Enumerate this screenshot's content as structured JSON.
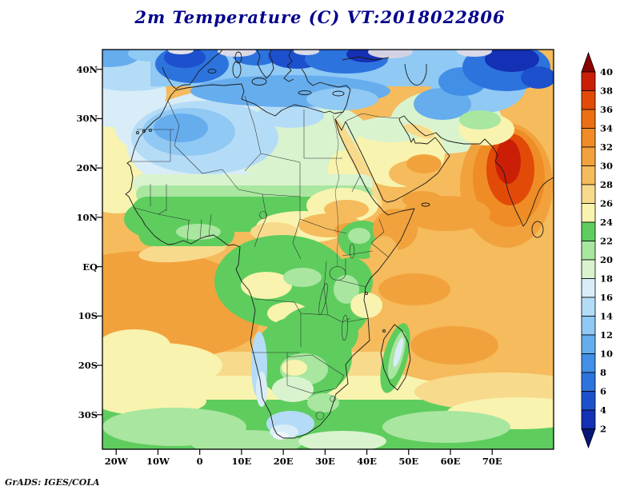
{
  "title": "2m Temperature (C) VT:2018022806",
  "footer": "GrADS: IGES/COLA",
  "colors": {
    "title_text": "#00008b",
    "frame": "#000000",
    "coastline": "#1b1b1b",
    "borders": "#2b2b2b"
  },
  "axes": {
    "lat": {
      "ticks": [
        {
          "label": "40N",
          "deg": 40
        },
        {
          "label": "30N",
          "deg": 30
        },
        {
          "label": "20N",
          "deg": 20
        },
        {
          "label": "10N",
          "deg": 10
        },
        {
          "label": "EQ",
          "deg": 0
        },
        {
          "label": "10S",
          "deg": -10
        },
        {
          "label": "20S",
          "deg": -20
        },
        {
          "label": "30S",
          "deg": -30
        }
      ]
    },
    "lon": {
      "ticks": [
        {
          "label": "20W",
          "deg": -20
        },
        {
          "label": "10W",
          "deg": -10
        },
        {
          "label": "0",
          "deg": 0
        },
        {
          "label": "10E",
          "deg": 10
        },
        {
          "label": "20E",
          "deg": 20
        },
        {
          "label": "30E",
          "deg": 30
        },
        {
          "label": "40E",
          "deg": 40
        },
        {
          "label": "50E",
          "deg": 50
        },
        {
          "label": "60E",
          "deg": 60
        },
        {
          "label": "70E",
          "deg": 70
        }
      ]
    }
  },
  "colorbar": {
    "tick_labels": [
      "40",
      "38",
      "36",
      "34",
      "32",
      "30",
      "28",
      "26",
      "24",
      "22",
      "20",
      "18",
      "16",
      "14",
      "12",
      "10",
      "8",
      "6",
      "4",
      "2"
    ],
    "segment_colors_top_to_bottom": [
      "#cb1e06",
      "#e24a08",
      "#ec6f14",
      "#ef8c26",
      "#f2a23c",
      "#f5bb5c",
      "#f8da8c",
      "#f8f3ae",
      "#5ecd5e",
      "#a9e6a0",
      "#d9f3cf",
      "#d8edf7",
      "#b5dcf6",
      "#8fc9f4",
      "#66adee",
      "#418fe6",
      "#2d73de",
      "#1c50cd",
      "#1430b4"
    ],
    "above_color": "#8c0000",
    "below_color": "#081678"
  },
  "chart_data": {
    "type": "heatmap",
    "title": "2m Temperature (C) VT:2018022806",
    "variable": "2m Temperature",
    "units": "C",
    "valid_time": "2018022806",
    "region": "Africa, southern Europe, Middle East and India",
    "axis_extent": {
      "lon_min": -25,
      "lon_max": 85,
      "lat_min": -38,
      "lat_max": 44
    },
    "lat_ticks": [
      "40N",
      "30N",
      "20N",
      "10N",
      "EQ",
      "10S",
      "20S",
      "30S"
    ],
    "lon_ticks": [
      "20W",
      "10W",
      "0",
      "10E",
      "20E",
      "30E",
      "40E",
      "50E",
      "60E",
      "70E"
    ],
    "contour_levels_c": [
      2,
      4,
      6,
      8,
      10,
      12,
      14,
      16,
      18,
      20,
      22,
      24,
      26,
      28,
      30,
      32,
      34,
      36,
      38,
      40
    ],
    "palette_bottom_to_top": [
      "#081678",
      "#1430b4",
      "#1c50cd",
      "#2d73de",
      "#418fe6",
      "#66adee",
      "#8fc9f4",
      "#b5dcf6",
      "#d8edf7",
      "#d9f3cf",
      "#a9e6a0",
      "#5ecd5e",
      "#f8f3ae",
      "#f8da8c",
      "#f5bb5c",
      "#f2a23c",
      "#ef8c26",
      "#ec6f14",
      "#e24a08",
      "#cb1e06",
      "#8c0000"
    ],
    "legend_position": "right",
    "grid": false,
    "field_summary": [
      {
        "region": "Europe and north Mediterranean coastlands",
        "approx_range_c": "2-12"
      },
      {
        "region": "Mediterranean Sea",
        "approx_range_c": "10-16"
      },
      {
        "region": "Northwest Sahara (Morocco-Algeria interior)",
        "approx_range_c": "8-16"
      },
      {
        "region": "Libya-Egypt",
        "approx_range_c": "16-20"
      },
      {
        "region": "Sahel belt (~10-17N)",
        "approx_range_c": "20-24"
      },
      {
        "region": "Chad-Sudan belt (~8-14N)",
        "approx_range_c": "24-30"
      },
      {
        "region": "Congo basin and equatorial Africa",
        "approx_range_c": "20-26"
      },
      {
        "region": "Ethiopian highlands",
        "approx_range_c": "18-22"
      },
      {
        "region": "Somalia and south Arabian coast",
        "approx_range_c": "28-32"
      },
      {
        "region": "Arabian Peninsula interior",
        "approx_range_c": "22-26"
      },
      {
        "region": "India west-coast hot core",
        "approx_range_c": "30-40"
      },
      {
        "region": "Central Asia / Himalaya (top right)",
        "approx_range_c": "2-8"
      },
      {
        "region": "Tropical Atlantic and Indian Ocean",
        "approx_range_c": "26-30"
      },
      {
        "region": "Subtropical south oceans (20-30S)",
        "approx_range_c": "22-26"
      },
      {
        "region": "Far south oceans (30-38S)",
        "approx_range_c": "18-22"
      },
      {
        "region": "Southern Africa interior",
        "approx_range_c": "18-24"
      },
      {
        "region": "Namibia and Cape coasts (Benguela)",
        "approx_range_c": "12-16"
      },
      {
        "region": "Madagascar interior",
        "approx_range_c": "16-20"
      }
    ],
    "credit": "GrADS: IGES/COLA"
  }
}
